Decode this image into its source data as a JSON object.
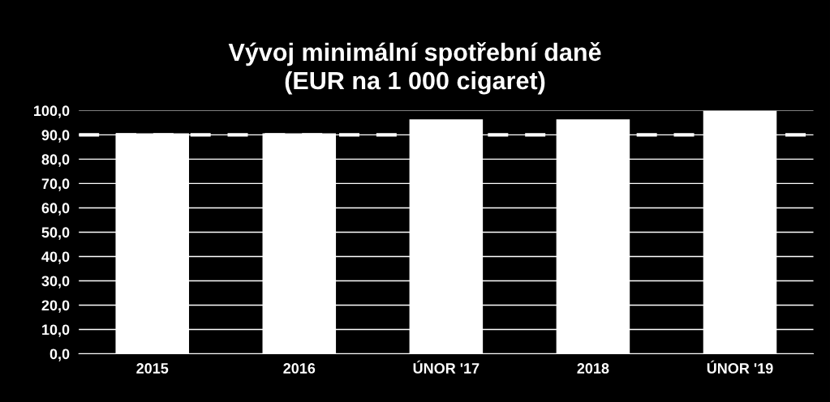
{
  "chart_data": {
    "type": "bar",
    "title": "Vývoj minimální spotřební daně\n(EUR na 1 000 cigaret)",
    "categories": [
      "2015",
      "2016",
      "ÚNOR '17",
      "2018",
      "ÚNOR '19"
    ],
    "values": [
      90.6,
      90.6,
      96.4,
      96.4,
      100
    ],
    "color": "#ffffff",
    "ylim": [
      0,
      100
    ],
    "yticks": [
      {
        "value": 0,
        "label": "0,0"
      },
      {
        "value": 10,
        "label": "10,0"
      },
      {
        "value": 20,
        "label": "20,0"
      },
      {
        "value": 30,
        "label": "30,0"
      },
      {
        "value": 40,
        "label": "40,0"
      },
      {
        "value": 50,
        "label": "50,0"
      },
      {
        "value": 60,
        "label": "60,0"
      },
      {
        "value": 70,
        "label": "70,0"
      },
      {
        "value": 80,
        "label": "80,0"
      },
      {
        "value": 90,
        "label": "90,0"
      },
      {
        "value": 100,
        "label": "100,0"
      }
    ],
    "grid": "y",
    "ref_lines": [
      {
        "axis": "y",
        "value": 90,
        "color": "#ffffff",
        "line_style": "dashed"
      }
    ]
  }
}
